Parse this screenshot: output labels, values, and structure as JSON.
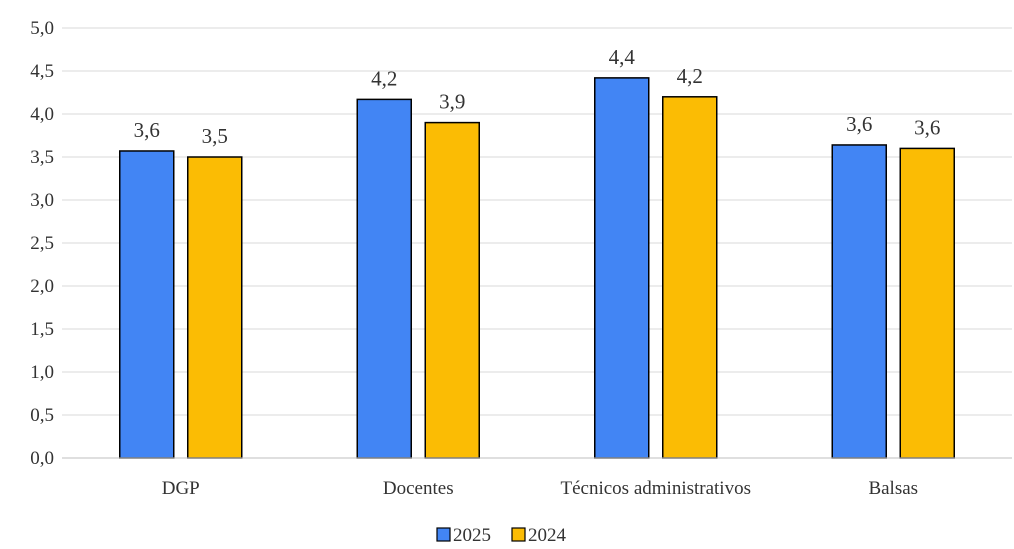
{
  "chart_data": {
    "type": "bar",
    "categories": [
      "DGP",
      "Docentes",
      "Técnicos administrativos",
      "Balsas"
    ],
    "series": [
      {
        "name": "2025",
        "values": [
          3.57,
          4.17,
          4.42,
          3.64
        ],
        "labels": [
          "3,6",
          "4,2",
          "4,4",
          "3,6"
        ],
        "color": "#4285F4"
      },
      {
        "name": "2024",
        "values": [
          3.5,
          3.9,
          4.2,
          3.6
        ],
        "labels": [
          "3,5",
          "3,9",
          "4,2",
          "3,6"
        ],
        "color": "#FBBC04"
      }
    ],
    "ylim": [
      0,
      5
    ],
    "yticks": [
      0,
      0.5,
      1,
      1.5,
      2,
      2.5,
      3,
      3.5,
      4,
      4.5,
      5
    ],
    "ytick_labels": [
      "0,0",
      "0,5",
      "1,0",
      "1,5",
      "2,0",
      "2,5",
      "3,0",
      "3,5",
      "4,0",
      "4,5",
      "5,0"
    ],
    "title": "",
    "xlabel": "",
    "ylabel": "",
    "grid": true,
    "legend": "bottom-center"
  }
}
